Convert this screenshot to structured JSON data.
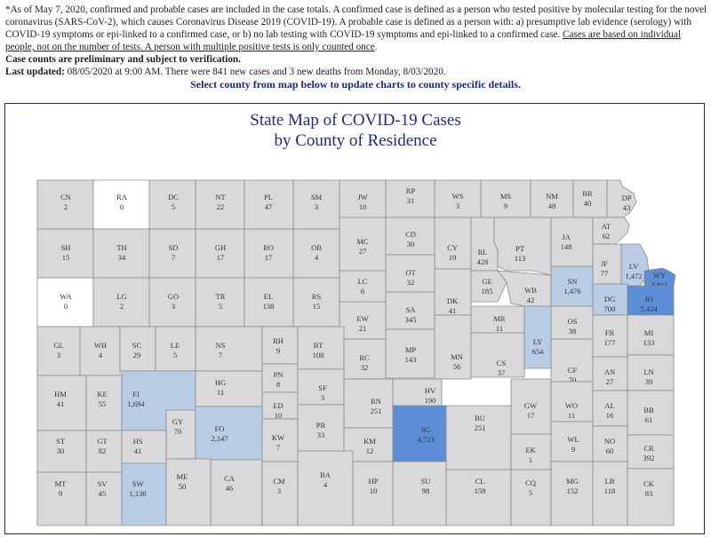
{
  "notes": {
    "line1": "*As of May 7, 2020, confirmed and probable cases are included in the case totals. A confirmed case is defined as a person who tested positive by molecular testing for the novel coronavirus (SARS-CoV-2), which causes Coronavirus Disease 2019 (COVID-19). A probable case is defined as a person with: a) presumptive lab evidence (serology) with COVID-19 symptoms or epi-linked to a confirmed case, or b) no lab testing with COVID-19 symptoms and epi-linked to a confirmed case. ",
    "line1_underlined": "Cases are based on individual people, not on the number of tests. A person with multiple positive tests is only counted once",
    "line1_end": ".",
    "preliminary": "Case counts are preliminary and subject to verification.",
    "updated_label": "Last updated:",
    "updated_text": " 08/05/2020 at 9:00 AM. There were 841 new cases and 3 new deaths from Monday, 8/03/2020."
  },
  "cta": "Select county from map below to update charts to county specific details.",
  "map": {
    "title_line1": "State Map of COVID-19 Cases",
    "title_line2": "by County of Residence"
  },
  "colors": {
    "zero": "#ffffff",
    "low": "#d9d9db",
    "mid": "#b8cce4",
    "high": "#5b8ed6",
    "border": "#8a8a8a",
    "frame": "#1e2c80"
  },
  "chart_data": {
    "type": "choropleth",
    "counties": [
      {
        "abbr": "CN",
        "value": "2"
      },
      {
        "abbr": "RA",
        "value": "0"
      },
      {
        "abbr": "DC",
        "value": "5"
      },
      {
        "abbr": "NT",
        "value": "22"
      },
      {
        "abbr": "PL",
        "value": "47"
      },
      {
        "abbr": "SM",
        "value": "3"
      },
      {
        "abbr": "JW",
        "value": "10"
      },
      {
        "abbr": "RP",
        "value": "31"
      },
      {
        "abbr": "WS",
        "value": "3"
      },
      {
        "abbr": "MS",
        "value": "9"
      },
      {
        "abbr": "NM",
        "value": "48"
      },
      {
        "abbr": "BR",
        "value": "40"
      },
      {
        "abbr": "DP",
        "value": "43"
      },
      {
        "abbr": "SH",
        "value": "15"
      },
      {
        "abbr": "TH",
        "value": "34"
      },
      {
        "abbr": "SD",
        "value": "7"
      },
      {
        "abbr": "GH",
        "value": "17"
      },
      {
        "abbr": "RO",
        "value": "17"
      },
      {
        "abbr": "OB",
        "value": "4"
      },
      {
        "abbr": "MC",
        "value": "27"
      },
      {
        "abbr": "CD",
        "value": "30"
      },
      {
        "abbr": "CY",
        "value": "19"
      },
      {
        "abbr": "RL",
        "value": "428"
      },
      {
        "abbr": "PT",
        "value": "113"
      },
      {
        "abbr": "JA",
        "value": "148"
      },
      {
        "abbr": "AT",
        "value": "62"
      },
      {
        "abbr": "JF",
        "value": "77"
      },
      {
        "abbr": "LV",
        "value": "1,472"
      },
      {
        "abbr": "WY",
        "value": "4,811"
      },
      {
        "abbr": "WA",
        "value": "0"
      },
      {
        "abbr": "LG",
        "value": "2"
      },
      {
        "abbr": "GO",
        "value": "3"
      },
      {
        "abbr": "TR",
        "value": "5"
      },
      {
        "abbr": "EL",
        "value": "138"
      },
      {
        "abbr": "RS",
        "value": "15"
      },
      {
        "abbr": "LC",
        "value": "6"
      },
      {
        "abbr": "OT",
        "value": "32"
      },
      {
        "abbr": "GE",
        "value": "185"
      },
      {
        "abbr": "WB",
        "value": "42"
      },
      {
        "abbr": "SN",
        "value": "1,476"
      },
      {
        "abbr": "DG",
        "value": "700"
      },
      {
        "abbr": "JO",
        "value": "5,434"
      },
      {
        "abbr": "SA",
        "value": "345"
      },
      {
        "abbr": "DK",
        "value": "41"
      },
      {
        "abbr": "EW",
        "value": "21"
      },
      {
        "abbr": "MR",
        "value": "11"
      },
      {
        "abbr": "OS",
        "value": "38"
      },
      {
        "abbr": "FR",
        "value": "177"
      },
      {
        "abbr": "MI",
        "value": "133"
      },
      {
        "abbr": "GL",
        "value": "3"
      },
      {
        "abbr": "WH",
        "value": "4"
      },
      {
        "abbr": "SC",
        "value": "29"
      },
      {
        "abbr": "LE",
        "value": "5"
      },
      {
        "abbr": "NS",
        "value": "7"
      },
      {
        "abbr": "RH",
        "value": "9"
      },
      {
        "abbr": "BT",
        "value": "108"
      },
      {
        "abbr": "RC",
        "value": "32"
      },
      {
        "abbr": "MP",
        "value": "143"
      },
      {
        "abbr": "MN",
        "value": "56"
      },
      {
        "abbr": "CS",
        "value": "37"
      },
      {
        "abbr": "LY",
        "value": "654"
      },
      {
        "abbr": "CF",
        "value": "70"
      },
      {
        "abbr": "AN",
        "value": "27"
      },
      {
        "abbr": "LN",
        "value": "39"
      },
      {
        "abbr": "HM",
        "value": "41"
      },
      {
        "abbr": "KE",
        "value": "55"
      },
      {
        "abbr": "FI",
        "value": "1,694"
      },
      {
        "abbr": "HG",
        "value": "11"
      },
      {
        "abbr": "PN",
        "value": "8"
      },
      {
        "abbr": "ED",
        "value": "10"
      },
      {
        "abbr": "SF",
        "value": "3"
      },
      {
        "abbr": "RN",
        "value": "251"
      },
      {
        "abbr": "HV",
        "value": "190"
      },
      {
        "abbr": "GW",
        "value": "17"
      },
      {
        "abbr": "WO",
        "value": "11"
      },
      {
        "abbr": "AL",
        "value": "16"
      },
      {
        "abbr": "BB",
        "value": "61"
      },
      {
        "abbr": "GY",
        "value": "70"
      },
      {
        "abbr": "FO",
        "value": "2,147"
      },
      {
        "abbr": "KW",
        "value": "7"
      },
      {
        "abbr": "PR",
        "value": "33"
      },
      {
        "abbr": "KM",
        "value": "12"
      },
      {
        "abbr": "SG",
        "value": "4,723"
      },
      {
        "abbr": "BU",
        "value": "251"
      },
      {
        "abbr": "EK",
        "value": "1"
      },
      {
        "abbr": "WL",
        "value": "9"
      },
      {
        "abbr": "NO",
        "value": "60"
      },
      {
        "abbr": "CR",
        "value": "392"
      },
      {
        "abbr": "ST",
        "value": "30"
      },
      {
        "abbr": "GT",
        "value": "82"
      },
      {
        "abbr": "HS",
        "value": "41"
      },
      {
        "abbr": "MT",
        "value": "9"
      },
      {
        "abbr": "SV",
        "value": "45"
      },
      {
        "abbr": "SW",
        "value": "1,138"
      },
      {
        "abbr": "ME",
        "value": "50"
      },
      {
        "abbr": "CA",
        "value": "46"
      },
      {
        "abbr": "CM",
        "value": "3"
      },
      {
        "abbr": "BA",
        "value": "4"
      },
      {
        "abbr": "HP",
        "value": "10"
      },
      {
        "abbr": "SU",
        "value": "98"
      },
      {
        "abbr": "CL",
        "value": "159"
      },
      {
        "abbr": "CQ",
        "value": "5"
      },
      {
        "abbr": "MG",
        "value": "152"
      },
      {
        "abbr": "LB",
        "value": "118"
      },
      {
        "abbr": "CK",
        "value": "83"
      }
    ]
  }
}
